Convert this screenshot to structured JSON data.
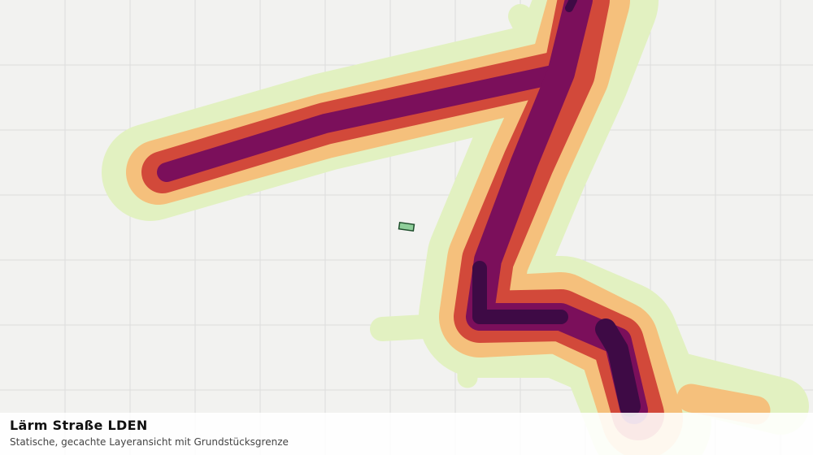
{
  "legend_panel": {
    "title": "Lärm Straße LDEN",
    "subtitle": "Statische, gecachte Layeransicht mit Grundstücksgrenze"
  }
}
